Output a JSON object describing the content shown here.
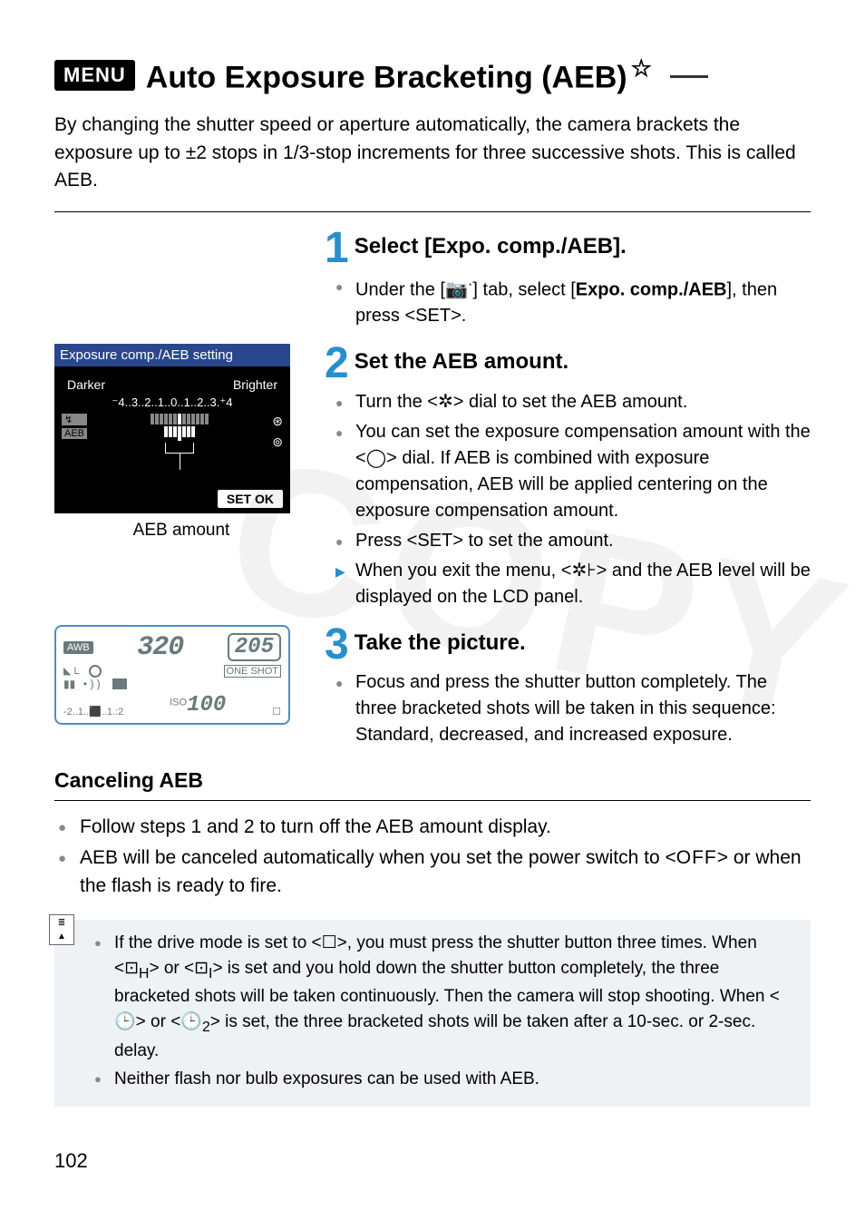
{
  "page_number": "102",
  "watermark": "COPY",
  "title": {
    "menu_badge": "MENU",
    "text": "Auto Exposure Bracketing (AEB)",
    "star": "☆"
  },
  "intro": "By changing the shutter speed or aperture automatically, the camera brackets the exposure up to ±2 stops in 1/3-stop increments for three successive shots. This is called AEB.",
  "steps": [
    {
      "num": "1",
      "title": "Select [Expo. comp./AEB].",
      "bullets": [
        {
          "type": "dot",
          "html": "Under the [📷<sup>·</sup>] tab, select [<b>Expo. comp./AEB</b>], then press &lt;<span class='sym'>SET</span>&gt;."
        }
      ]
    },
    {
      "num": "2",
      "title": "Set the AEB amount.",
      "bullets": [
        {
          "type": "dot",
          "html": "Turn the &lt;<span class='sym'>✲</span>&gt; dial to set the AEB amount."
        },
        {
          "type": "dot",
          "html": "You can set the exposure compensation amount with the &lt;<span class='sym'>◯</span>&gt; dial. If AEB is combined with exposure compensation, AEB will be applied centering on the exposure compensation amount."
        },
        {
          "type": "dot",
          "html": "Press &lt;<span class='sym'>SET</span>&gt; to set the amount."
        },
        {
          "type": "arrow",
          "html": "When you exit the menu, &lt;<span class='sym'>✲⊦</span>&gt; and the AEB level will be displayed on the LCD panel."
        }
      ]
    },
    {
      "num": "3",
      "title": "Take the picture.",
      "bullets": [
        {
          "type": "dot",
          "html": "Focus and press the shutter button completely. The three bracketed shots will be taken in this sequence: Standard, decreased, and increased exposure."
        }
      ]
    }
  ],
  "lcd_panel": {
    "title": "Exposure comp./AEB setting",
    "darker": "Darker",
    "brighter": "Brighter",
    "scale": "⁻4..3..2..1..0..1..2..3.⁺4",
    "badges": [
      "↯",
      "AEB"
    ],
    "ok": "SET  OK",
    "caption": "AEB amount"
  },
  "top_lcd": {
    "awb": "AWB",
    "shutter": "320",
    "shots": "205",
    "L": "◣ L",
    "one_shot": "ONE SHOT",
    "battery": "▮▮ •))",
    "scale": "-2..1..⬛..1.:2",
    "iso_label": "ISO",
    "iso": "100",
    "drive": "☐"
  },
  "cancel": {
    "heading": "Canceling AEB",
    "items": [
      "Follow steps 1 and 2 to turn off the AEB amount display.",
      "AEB will be canceled automatically when you set the power switch to &lt;<span class='off-sym'>OFF</span>&gt; or when the flash is ready to fire."
    ]
  },
  "note": {
    "items": [
      "If the drive mode is set to &lt;☐&gt;, you must press the shutter button three times. When &lt;⊡<sub>H</sub>&gt; or &lt;⊡<sub>I</sub>&gt; is set and you hold down the shutter button completely, the three bracketed shots will be taken continuously. Then the camera will stop shooting. When &lt;🕒&gt; or &lt;🕒<sub>2</sub>&gt; is set, the three bracketed shots will be taken after a 10-sec. or 2-sec. delay.",
      "Neither flash nor bulb exposures can be used with AEB."
    ]
  },
  "colors": {
    "step_num": "#278fcd",
    "lcd_titlebar": "#29478c",
    "note_bg": "#eef2f5",
    "top_lcd_border": "#4a8fc6",
    "gray_bullet": "#888888"
  }
}
